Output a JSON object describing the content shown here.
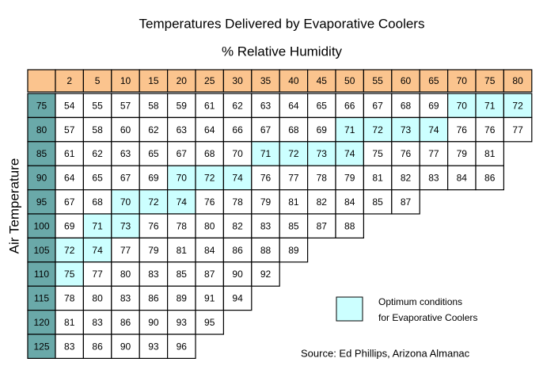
{
  "title": "Temperatures Delivered by Evaporative Coolers",
  "subtitle": "% Relative Humidity",
  "row_axis_label": "Air Temperature",
  "table": {
    "columns": [
      2,
      5,
      10,
      15,
      20,
      25,
      30,
      35,
      40,
      45,
      50,
      55,
      60,
      65,
      70,
      75,
      80
    ],
    "header_color": "#fbc48e",
    "row_label_color": "#6aa9a9",
    "highlight_color": "#ccffff",
    "rows": [
      {
        "temp": 75,
        "values": [
          54,
          55,
          57,
          58,
          59,
          61,
          62,
          63,
          64,
          65,
          66,
          67,
          68,
          69,
          70,
          71,
          72
        ],
        "highlight": [
          14,
          15,
          16
        ]
      },
      {
        "temp": 80,
        "values": [
          57,
          58,
          60,
          62,
          63,
          64,
          66,
          67,
          68,
          69,
          71,
          72,
          73,
          74,
          76,
          76,
          77
        ],
        "highlight": [
          10,
          11,
          12,
          13
        ]
      },
      {
        "temp": 85,
        "values": [
          61,
          62,
          63,
          65,
          67,
          68,
          70,
          71,
          72,
          73,
          74,
          75,
          76,
          77,
          79,
          81
        ],
        "highlight": [
          7,
          8,
          9,
          10
        ]
      },
      {
        "temp": 90,
        "values": [
          64,
          65,
          67,
          69,
          70,
          72,
          74,
          76,
          77,
          78,
          79,
          81,
          82,
          83,
          84,
          86
        ],
        "highlight": [
          4,
          5,
          6
        ]
      },
      {
        "temp": 95,
        "values": [
          67,
          68,
          70,
          72,
          74,
          76,
          78,
          79,
          81,
          82,
          84,
          85,
          87
        ],
        "highlight": [
          2,
          3,
          4
        ]
      },
      {
        "temp": 100,
        "values": [
          69,
          71,
          73,
          76,
          78,
          80,
          82,
          83,
          85,
          87,
          88
        ],
        "highlight": [
          1,
          2
        ]
      },
      {
        "temp": 105,
        "values": [
          72,
          74,
          77,
          79,
          81,
          84,
          86,
          88,
          89
        ],
        "highlight": [
          0,
          1
        ]
      },
      {
        "temp": 110,
        "values": [
          75,
          77,
          80,
          83,
          85,
          87,
          90,
          92
        ],
        "highlight": [
          0
        ]
      },
      {
        "temp": 115,
        "values": [
          78,
          80,
          83,
          86,
          89,
          91,
          94
        ],
        "highlight": []
      },
      {
        "temp": 120,
        "values": [
          81,
          83,
          86,
          90,
          93,
          95
        ],
        "highlight": []
      },
      {
        "temp": 125,
        "values": [
          83,
          86,
          90,
          93,
          96
        ],
        "highlight": []
      }
    ]
  },
  "legend": {
    "lines": [
      "Optimum conditions",
      "for Evaporative Coolers"
    ]
  },
  "source": "Source: Ed Phillips, Arizona Almanac"
}
